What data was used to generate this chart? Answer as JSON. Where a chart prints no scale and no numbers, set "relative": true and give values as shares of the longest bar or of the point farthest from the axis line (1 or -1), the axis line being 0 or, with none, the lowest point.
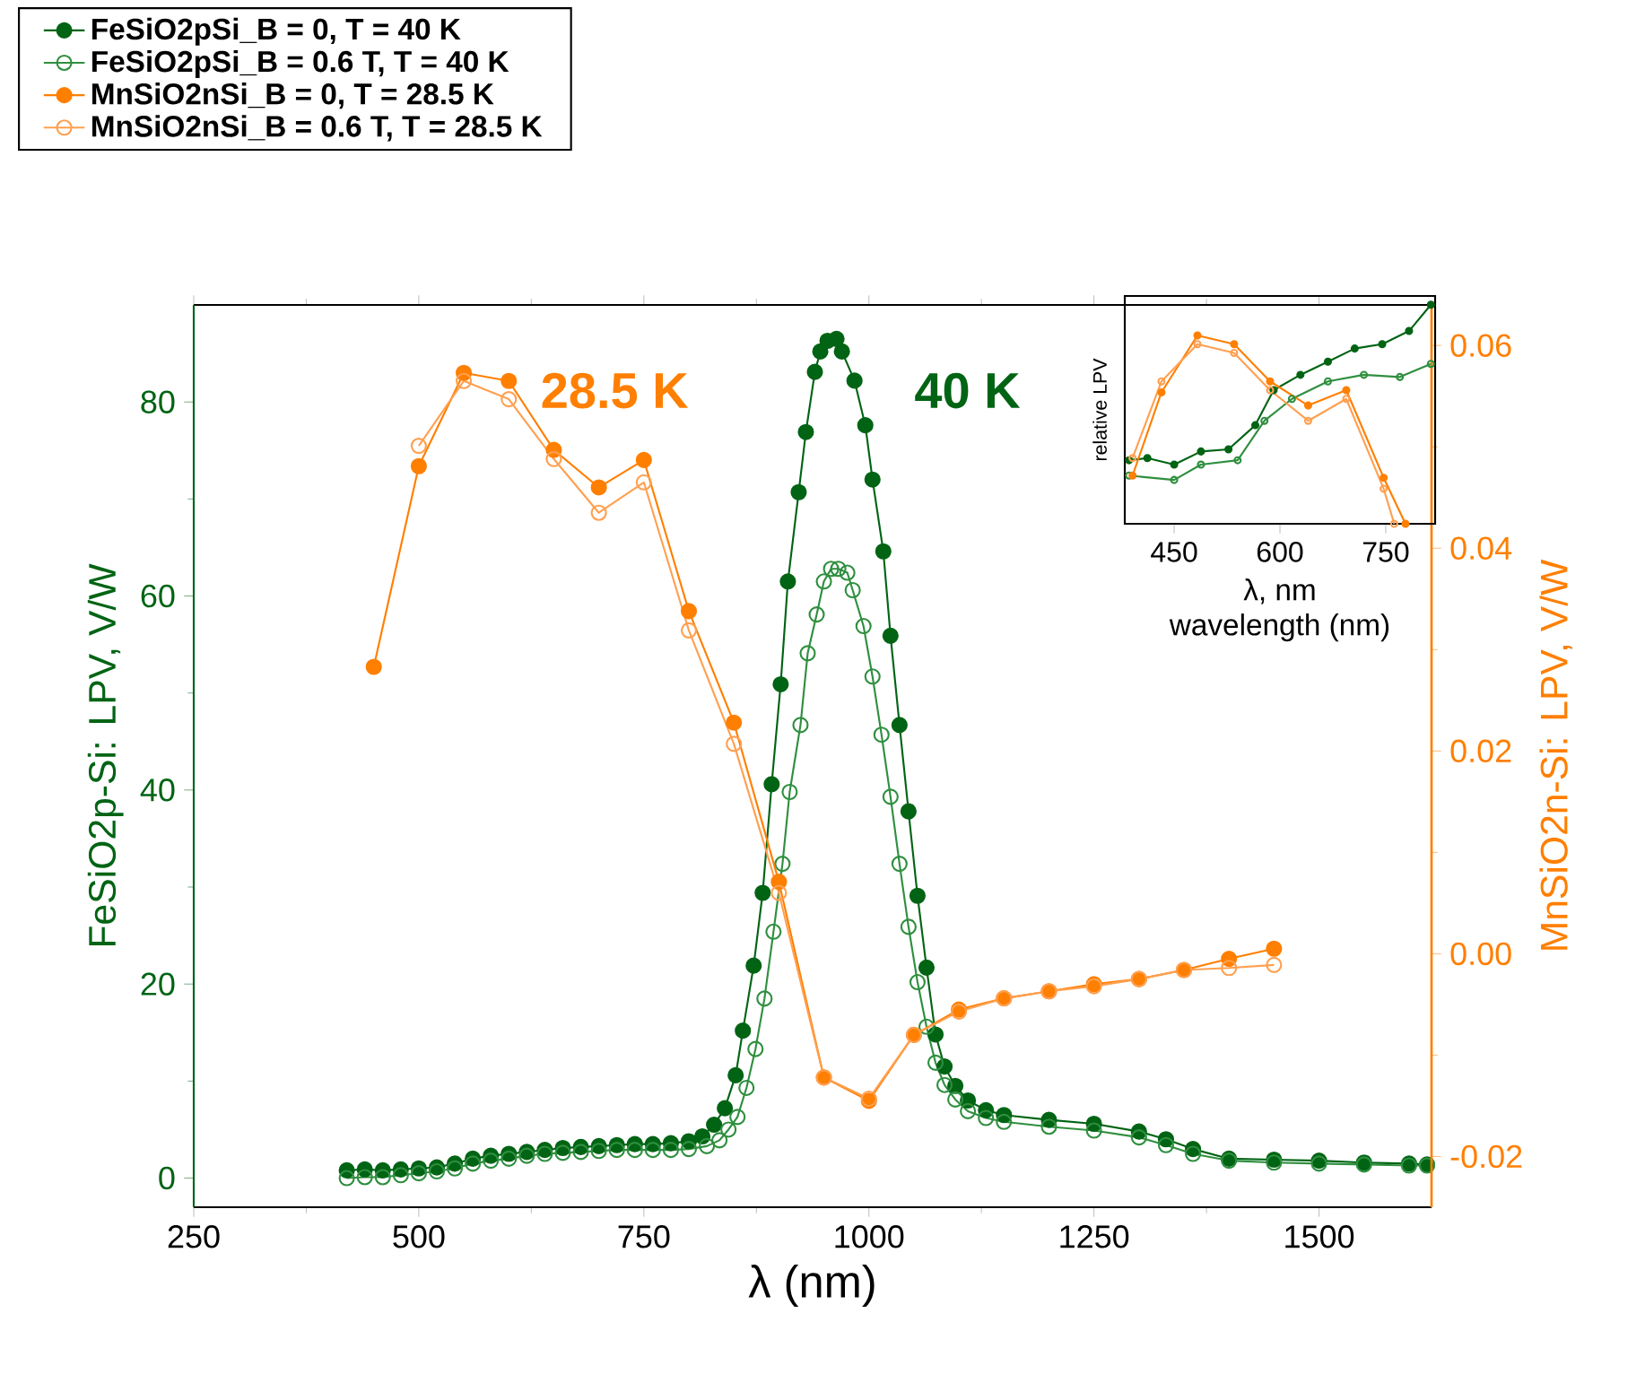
{
  "chart_data": [
    {
      "type": "line",
      "xlabel": "λ (nm)",
      "ylabel": "FeSiO2p-Si: LPV, V/W",
      "y2label": "MnSiO2n-Si: LPV, V/W",
      "xlim": [
        250,
        1625
      ],
      "xticks": [
        250,
        500,
        750,
        1000,
        1250,
        1500
      ],
      "ylim": [
        -3,
        90
      ],
      "yticks": [
        0,
        20,
        40,
        60,
        80
      ],
      "y2lim": [
        -0.025,
        0.064
      ],
      "y2ticks": [
        -0.02,
        {
          "value": 0,
          "label": "0.00"
        },
        0.02,
        0.04,
        0.06
      ],
      "legend": "top left",
      "annotations": [
        "28.5 K",
        "40 K"
      ],
      "series": [
        {
          "name": "FeSiO2pSi_B = 0, T = 40 K",
          "color": "#006414",
          "marker": "circle",
          "axis": "y",
          "x": [
            420,
            440,
            460,
            480,
            500,
            520,
            540,
            560,
            580,
            600,
            620,
            640,
            660,
            680,
            700,
            720,
            740,
            760,
            780,
            800,
            815,
            828,
            840,
            852,
            860,
            872,
            882,
            892,
            902,
            910,
            922,
            930,
            940,
            946,
            954,
            964,
            970,
            984,
            996,
            1004,
            1016,
            1024,
            1034,
            1044,
            1054,
            1064,
            1074,
            1084,
            1096,
            1110,
            1130,
            1150,
            1200,
            1250,
            1300,
            1330,
            1360,
            1400,
            1450,
            1500,
            1550,
            1600,
            1620
          ],
          "values": [
            0.8,
            0.9,
            0.8,
            0.9,
            1.0,
            1.1,
            1.5,
            2.0,
            2.3,
            2.5,
            2.7,
            2.9,
            3.1,
            3.2,
            3.3,
            3.4,
            3.5,
            3.5,
            3.6,
            3.8,
            4.3,
            5.5,
            7.2,
            10.6,
            15.2,
            21.9,
            29.4,
            40.6,
            50.9,
            61.5,
            70.7,
            76.9,
            83.1,
            85.2,
            86.3,
            86.5,
            85.2,
            82.2,
            77.6,
            72.0,
            64.6,
            55.9,
            46.7,
            37.8,
            29.1,
            21.7,
            14.8,
            11.5,
            9.5,
            8.0,
            7.0,
            6.5,
            6.0,
            5.6,
            4.8,
            4.0,
            3.0,
            2.0,
            1.9,
            1.8,
            1.6,
            1.5,
            1.4
          ]
        },
        {
          "name": "FeSiO2pSi_B = 0.6 T, T = 40 K",
          "color": "#2f8f3f",
          "marker": "circle_open",
          "axis": "y",
          "x": [
            420,
            440,
            460,
            480,
            500,
            520,
            540,
            560,
            580,
            600,
            620,
            640,
            660,
            680,
            700,
            720,
            740,
            760,
            780,
            800,
            820,
            834,
            844,
            854,
            864,
            874,
            884,
            894,
            904,
            912,
            924,
            932,
            942,
            950,
            958,
            966,
            976,
            982,
            994,
            1004,
            1014,
            1024,
            1034,
            1044,
            1054,
            1064,
            1074,
            1084,
            1096,
            1110,
            1130,
            1150,
            1200,
            1250,
            1300,
            1330,
            1360,
            1400,
            1450,
            1500,
            1550,
            1600,
            1620
          ],
          "values": [
            0.0,
            0.1,
            0.1,
            0.3,
            0.5,
            0.7,
            1.0,
            1.5,
            1.8,
            2.0,
            2.3,
            2.5,
            2.6,
            2.7,
            2.8,
            2.9,
            2.9,
            2.9,
            2.9,
            3.0,
            3.3,
            3.9,
            5.0,
            6.3,
            9.3,
            13.3,
            18.5,
            25.4,
            32.4,
            39.8,
            46.7,
            54.1,
            58.1,
            61.5,
            62.8,
            62.8,
            62.4,
            60.6,
            56.9,
            51.7,
            45.7,
            39.3,
            32.4,
            25.9,
            20.2,
            15.6,
            11.9,
            9.6,
            8.1,
            6.9,
            6.2,
            5.8,
            5.3,
            4.9,
            4.2,
            3.4,
            2.5,
            1.8,
            1.6,
            1.5,
            1.4,
            1.3,
            1.3
          ]
        },
        {
          "name": "MnSiO2nSi_B = 0, T = 28.5 K",
          "color": "#ff7f00",
          "marker": "circle",
          "axis": "y2",
          "x": [
            450,
            500,
            550,
            600,
            650,
            700,
            750,
            800,
            850,
            900,
            950,
            1000,
            1050,
            1100,
            1150,
            1200,
            1250,
            1300,
            1350,
            1400,
            1450
          ],
          "values": [
            0.0283,
            0.0481,
            0.0573,
            0.0565,
            0.0497,
            0.046,
            0.0487,
            0.0338,
            0.0228,
            0.0071,
            -0.0122,
            -0.0145,
            -0.008,
            -0.0055,
            -0.0044,
            -0.0037,
            -0.003,
            -0.0025,
            -0.0016,
            -0.0005,
            0.0005
          ]
        },
        {
          "name": "MnSiO2nSi_B = 0.6 T, T = 28.5 K",
          "color": "#ffa050",
          "marker": "circle_open",
          "axis": "y2",
          "x": [
            500,
            550,
            600,
            650,
            700,
            750,
            800,
            850,
            900,
            950,
            1000,
            1050,
            1100,
            1150,
            1200,
            1250,
            1300,
            1350,
            1400,
            1450
          ],
          "values": [
            0.0501,
            0.0565,
            0.0547,
            0.0488,
            0.0435,
            0.0465,
            0.0319,
            0.0207,
            0.006,
            -0.0122,
            -0.0143,
            -0.008,
            -0.0057,
            -0.0044,
            -0.0037,
            -0.0032,
            -0.0025,
            -0.0016,
            -0.0014,
            -0.0011
          ]
        }
      ]
    },
    {
      "type": "line",
      "relative": true,
      "xlabel": "λ, nm",
      "ylabel": "relative LPV",
      "annotations": [
        "wavelength (nm)"
      ],
      "xlim": [
        380,
        820
      ],
      "xticks": [
        450,
        600,
        750
      ],
      "tick_labels": "x",
      "series": [
        {
          "color": "#006414",
          "marker": "circle",
          "x": [
            386,
            412,
            450,
            488,
            527,
            565,
            591,
            629,
            668,
            706,
            745,
            783,
            814
          ],
          "values": [
            0.29,
            0.3,
            0.27,
            0.33,
            0.34,
            0.45,
            0.61,
            0.68,
            0.74,
            0.8,
            0.82,
            0.88,
            1.0
          ]
        },
        {
          "color": "#2f8f3f",
          "marker": "circle_open",
          "x": [
            386,
            450,
            488,
            540,
            578,
            617,
            668,
            719,
            770,
            814
          ],
          "values": [
            0.22,
            0.2,
            0.27,
            0.29,
            0.47,
            0.57,
            0.65,
            0.68,
            0.67,
            0.73
          ]
        },
        {
          "color": "#ff7f00",
          "marker": "circle",
          "x": [
            391,
            432,
            483,
            535,
            586,
            640,
            694,
            747,
            778
          ],
          "values": [
            0.22,
            0.6,
            0.86,
            0.82,
            0.65,
            0.54,
            0.61,
            0.21,
            0
          ]
        },
        {
          "color": "#ffa050",
          "marker": "circle_open",
          "x": [
            391,
            432,
            483,
            535,
            586,
            640,
            694,
            747,
            762
          ],
          "values": [
            0.3,
            0.65,
            0.82,
            0.78,
            0.61,
            0.47,
            0.57,
            0.16,
            0
          ]
        }
      ]
    }
  ]
}
